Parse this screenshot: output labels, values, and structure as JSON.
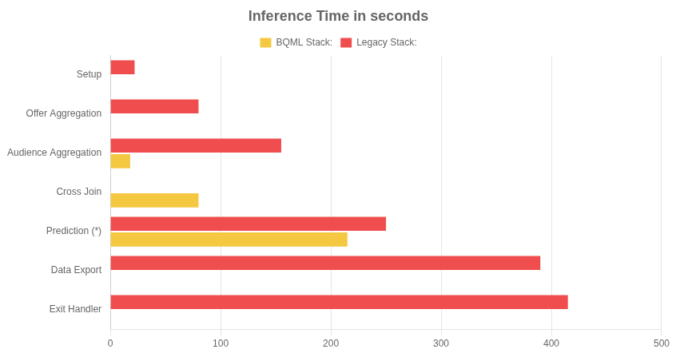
{
  "chart_data": {
    "type": "bar",
    "orientation": "horizontal",
    "title": "Inference Time in seconds",
    "categories": [
      "Setup",
      "Offer Aggregation",
      "Audience Aggregation",
      "Cross Join",
      "Prediction (*)",
      "Data Export",
      "Exit Handler"
    ],
    "series": [
      {
        "name": "Legacy Stack:",
        "color": "#f04e4e",
        "values": [
          22,
          80,
          155,
          0,
          250,
          390,
          415
        ]
      },
      {
        "name": "BQML Stack:",
        "color": "#f5c842",
        "values": [
          0,
          0,
          18,
          80,
          215,
          0,
          0
        ]
      }
    ],
    "xlim": [
      0,
      500
    ],
    "xticks": [
      0,
      100,
      200,
      300,
      400,
      500
    ],
    "grid": true,
    "legend": "top"
  }
}
